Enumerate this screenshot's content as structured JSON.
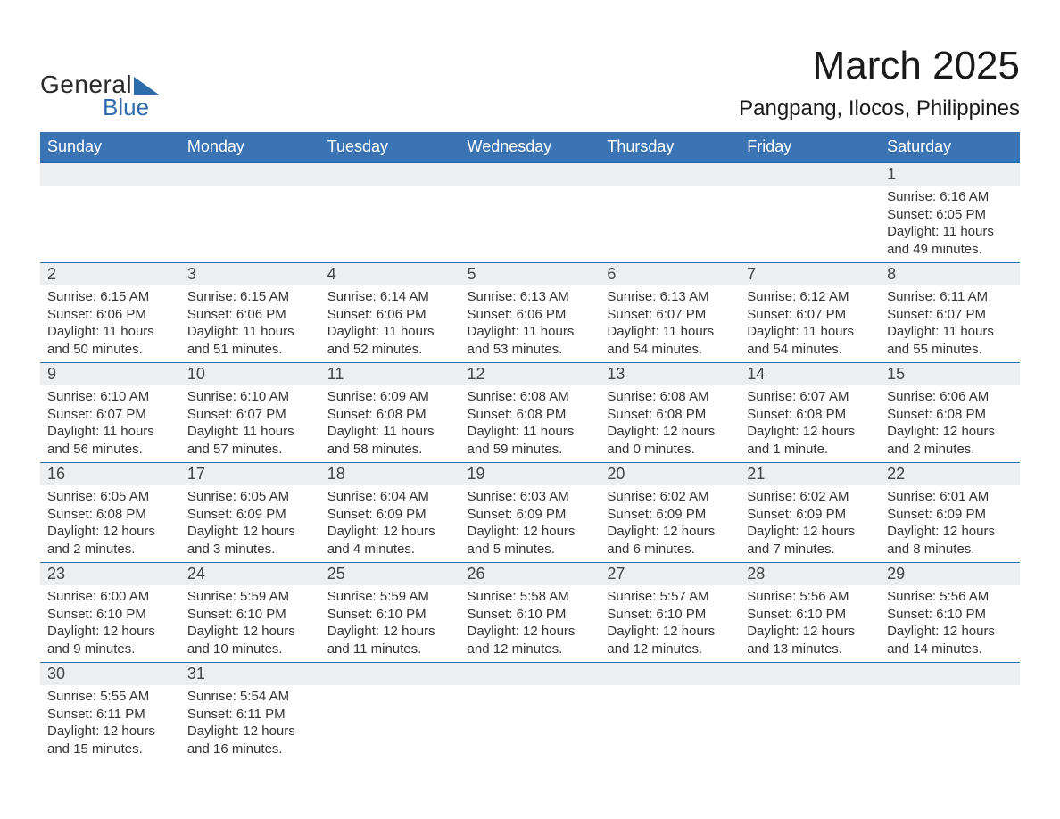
{
  "logo": {
    "text_general": "General",
    "text_blue": "Blue",
    "brand_color": "#2e6bab",
    "text_color": "#2a2a2a"
  },
  "title": "March 2025",
  "location": "Pangpang, Ilocos, Philippines",
  "header_bg": "#3a74b4",
  "header_text_color": "#ffffff",
  "daynum_bg": "#eceeef",
  "row_border_color": "#2e6bab",
  "body_text_color": "#333333",
  "title_fontsize": 44,
  "location_fontsize": 24,
  "header_fontsize": 18,
  "daynum_fontsize": 18,
  "body_fontsize": 15,
  "week_headers": [
    "Sunday",
    "Monday",
    "Tuesday",
    "Wednesday",
    "Thursday",
    "Friday",
    "Saturday"
  ],
  "weeks": [
    [
      null,
      null,
      null,
      null,
      null,
      null,
      {
        "n": "1",
        "sunrise": "Sunrise: 6:16 AM",
        "sunset": "Sunset: 6:05 PM",
        "daylight": "Daylight: 11 hours and 49 minutes."
      }
    ],
    [
      {
        "n": "2",
        "sunrise": "Sunrise: 6:15 AM",
        "sunset": "Sunset: 6:06 PM",
        "daylight": "Daylight: 11 hours and 50 minutes."
      },
      {
        "n": "3",
        "sunrise": "Sunrise: 6:15 AM",
        "sunset": "Sunset: 6:06 PM",
        "daylight": "Daylight: 11 hours and 51 minutes."
      },
      {
        "n": "4",
        "sunrise": "Sunrise: 6:14 AM",
        "sunset": "Sunset: 6:06 PM",
        "daylight": "Daylight: 11 hours and 52 minutes."
      },
      {
        "n": "5",
        "sunrise": "Sunrise: 6:13 AM",
        "sunset": "Sunset: 6:06 PM",
        "daylight": "Daylight: 11 hours and 53 minutes."
      },
      {
        "n": "6",
        "sunrise": "Sunrise: 6:13 AM",
        "sunset": "Sunset: 6:07 PM",
        "daylight": "Daylight: 11 hours and 54 minutes."
      },
      {
        "n": "7",
        "sunrise": "Sunrise: 6:12 AM",
        "sunset": "Sunset: 6:07 PM",
        "daylight": "Daylight: 11 hours and 54 minutes."
      },
      {
        "n": "8",
        "sunrise": "Sunrise: 6:11 AM",
        "sunset": "Sunset: 6:07 PM",
        "daylight": "Daylight: 11 hours and 55 minutes."
      }
    ],
    [
      {
        "n": "9",
        "sunrise": "Sunrise: 6:10 AM",
        "sunset": "Sunset: 6:07 PM",
        "daylight": "Daylight: 11 hours and 56 minutes."
      },
      {
        "n": "10",
        "sunrise": "Sunrise: 6:10 AM",
        "sunset": "Sunset: 6:07 PM",
        "daylight": "Daylight: 11 hours and 57 minutes."
      },
      {
        "n": "11",
        "sunrise": "Sunrise: 6:09 AM",
        "sunset": "Sunset: 6:08 PM",
        "daylight": "Daylight: 11 hours and 58 minutes."
      },
      {
        "n": "12",
        "sunrise": "Sunrise: 6:08 AM",
        "sunset": "Sunset: 6:08 PM",
        "daylight": "Daylight: 11 hours and 59 minutes."
      },
      {
        "n": "13",
        "sunrise": "Sunrise: 6:08 AM",
        "sunset": "Sunset: 6:08 PM",
        "daylight": "Daylight: 12 hours and 0 minutes."
      },
      {
        "n": "14",
        "sunrise": "Sunrise: 6:07 AM",
        "sunset": "Sunset: 6:08 PM",
        "daylight": "Daylight: 12 hours and 1 minute."
      },
      {
        "n": "15",
        "sunrise": "Sunrise: 6:06 AM",
        "sunset": "Sunset: 6:08 PM",
        "daylight": "Daylight: 12 hours and 2 minutes."
      }
    ],
    [
      {
        "n": "16",
        "sunrise": "Sunrise: 6:05 AM",
        "sunset": "Sunset: 6:08 PM",
        "daylight": "Daylight: 12 hours and 2 minutes."
      },
      {
        "n": "17",
        "sunrise": "Sunrise: 6:05 AM",
        "sunset": "Sunset: 6:09 PM",
        "daylight": "Daylight: 12 hours and 3 minutes."
      },
      {
        "n": "18",
        "sunrise": "Sunrise: 6:04 AM",
        "sunset": "Sunset: 6:09 PM",
        "daylight": "Daylight: 12 hours and 4 minutes."
      },
      {
        "n": "19",
        "sunrise": "Sunrise: 6:03 AM",
        "sunset": "Sunset: 6:09 PM",
        "daylight": "Daylight: 12 hours and 5 minutes."
      },
      {
        "n": "20",
        "sunrise": "Sunrise: 6:02 AM",
        "sunset": "Sunset: 6:09 PM",
        "daylight": "Daylight: 12 hours and 6 minutes."
      },
      {
        "n": "21",
        "sunrise": "Sunrise: 6:02 AM",
        "sunset": "Sunset: 6:09 PM",
        "daylight": "Daylight: 12 hours and 7 minutes."
      },
      {
        "n": "22",
        "sunrise": "Sunrise: 6:01 AM",
        "sunset": "Sunset: 6:09 PM",
        "daylight": "Daylight: 12 hours and 8 minutes."
      }
    ],
    [
      {
        "n": "23",
        "sunrise": "Sunrise: 6:00 AM",
        "sunset": "Sunset: 6:10 PM",
        "daylight": "Daylight: 12 hours and 9 minutes."
      },
      {
        "n": "24",
        "sunrise": "Sunrise: 5:59 AM",
        "sunset": "Sunset: 6:10 PM",
        "daylight": "Daylight: 12 hours and 10 minutes."
      },
      {
        "n": "25",
        "sunrise": "Sunrise: 5:59 AM",
        "sunset": "Sunset: 6:10 PM",
        "daylight": "Daylight: 12 hours and 11 minutes."
      },
      {
        "n": "26",
        "sunrise": "Sunrise: 5:58 AM",
        "sunset": "Sunset: 6:10 PM",
        "daylight": "Daylight: 12 hours and 12 minutes."
      },
      {
        "n": "27",
        "sunrise": "Sunrise: 5:57 AM",
        "sunset": "Sunset: 6:10 PM",
        "daylight": "Daylight: 12 hours and 12 minutes."
      },
      {
        "n": "28",
        "sunrise": "Sunrise: 5:56 AM",
        "sunset": "Sunset: 6:10 PM",
        "daylight": "Daylight: 12 hours and 13 minutes."
      },
      {
        "n": "29",
        "sunrise": "Sunrise: 5:56 AM",
        "sunset": "Sunset: 6:10 PM",
        "daylight": "Daylight: 12 hours and 14 minutes."
      }
    ],
    [
      {
        "n": "30",
        "sunrise": "Sunrise: 5:55 AM",
        "sunset": "Sunset: 6:11 PM",
        "daylight": "Daylight: 12 hours and 15 minutes."
      },
      {
        "n": "31",
        "sunrise": "Sunrise: 5:54 AM",
        "sunset": "Sunset: 6:11 PM",
        "daylight": "Daylight: 12 hours and 16 minutes."
      },
      null,
      null,
      null,
      null,
      null
    ]
  ]
}
